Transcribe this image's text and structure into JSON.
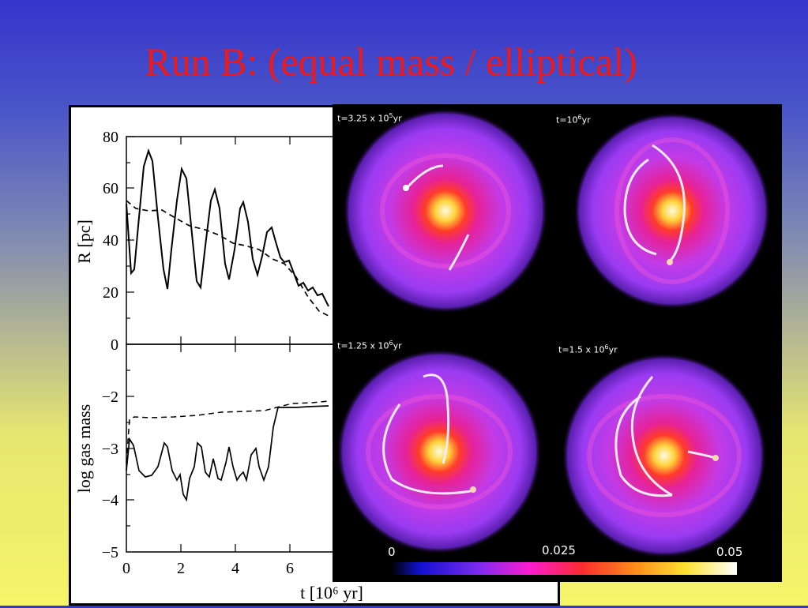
{
  "slide": {
    "title": "Run B: (equal mass / elliptical)"
  },
  "plot": {
    "top": {
      "ylabel": "R [pc]",
      "yticks": [
        "0",
        "20",
        "40",
        "60",
        "80"
      ]
    },
    "bottom": {
      "ylabel": "log gas mass",
      "yticks": [
        "−5",
        "−4",
        "−3",
        "−2"
      ]
    },
    "xticks": [
      "0",
      "2",
      "4",
      "6"
    ],
    "xlabel": "t [10⁶ yr]"
  },
  "simulation": {
    "frames": [
      {
        "label_prefix": "t=3.25 x 10",
        "label_exp": "5",
        "label_unit": "yr"
      },
      {
        "label_prefix": "t=10",
        "label_exp": "6",
        "label_unit": "yr"
      },
      {
        "label_prefix": "t=1.25 x 10",
        "label_exp": "6",
        "label_unit": "yr"
      },
      {
        "label_prefix": "t=1.5 x 10",
        "label_exp": "6",
        "label_unit": "yr"
      }
    ],
    "colorbar": {
      "min_label": "0",
      "mid_label": "0.025",
      "max_label": "0.05"
    }
  }
}
